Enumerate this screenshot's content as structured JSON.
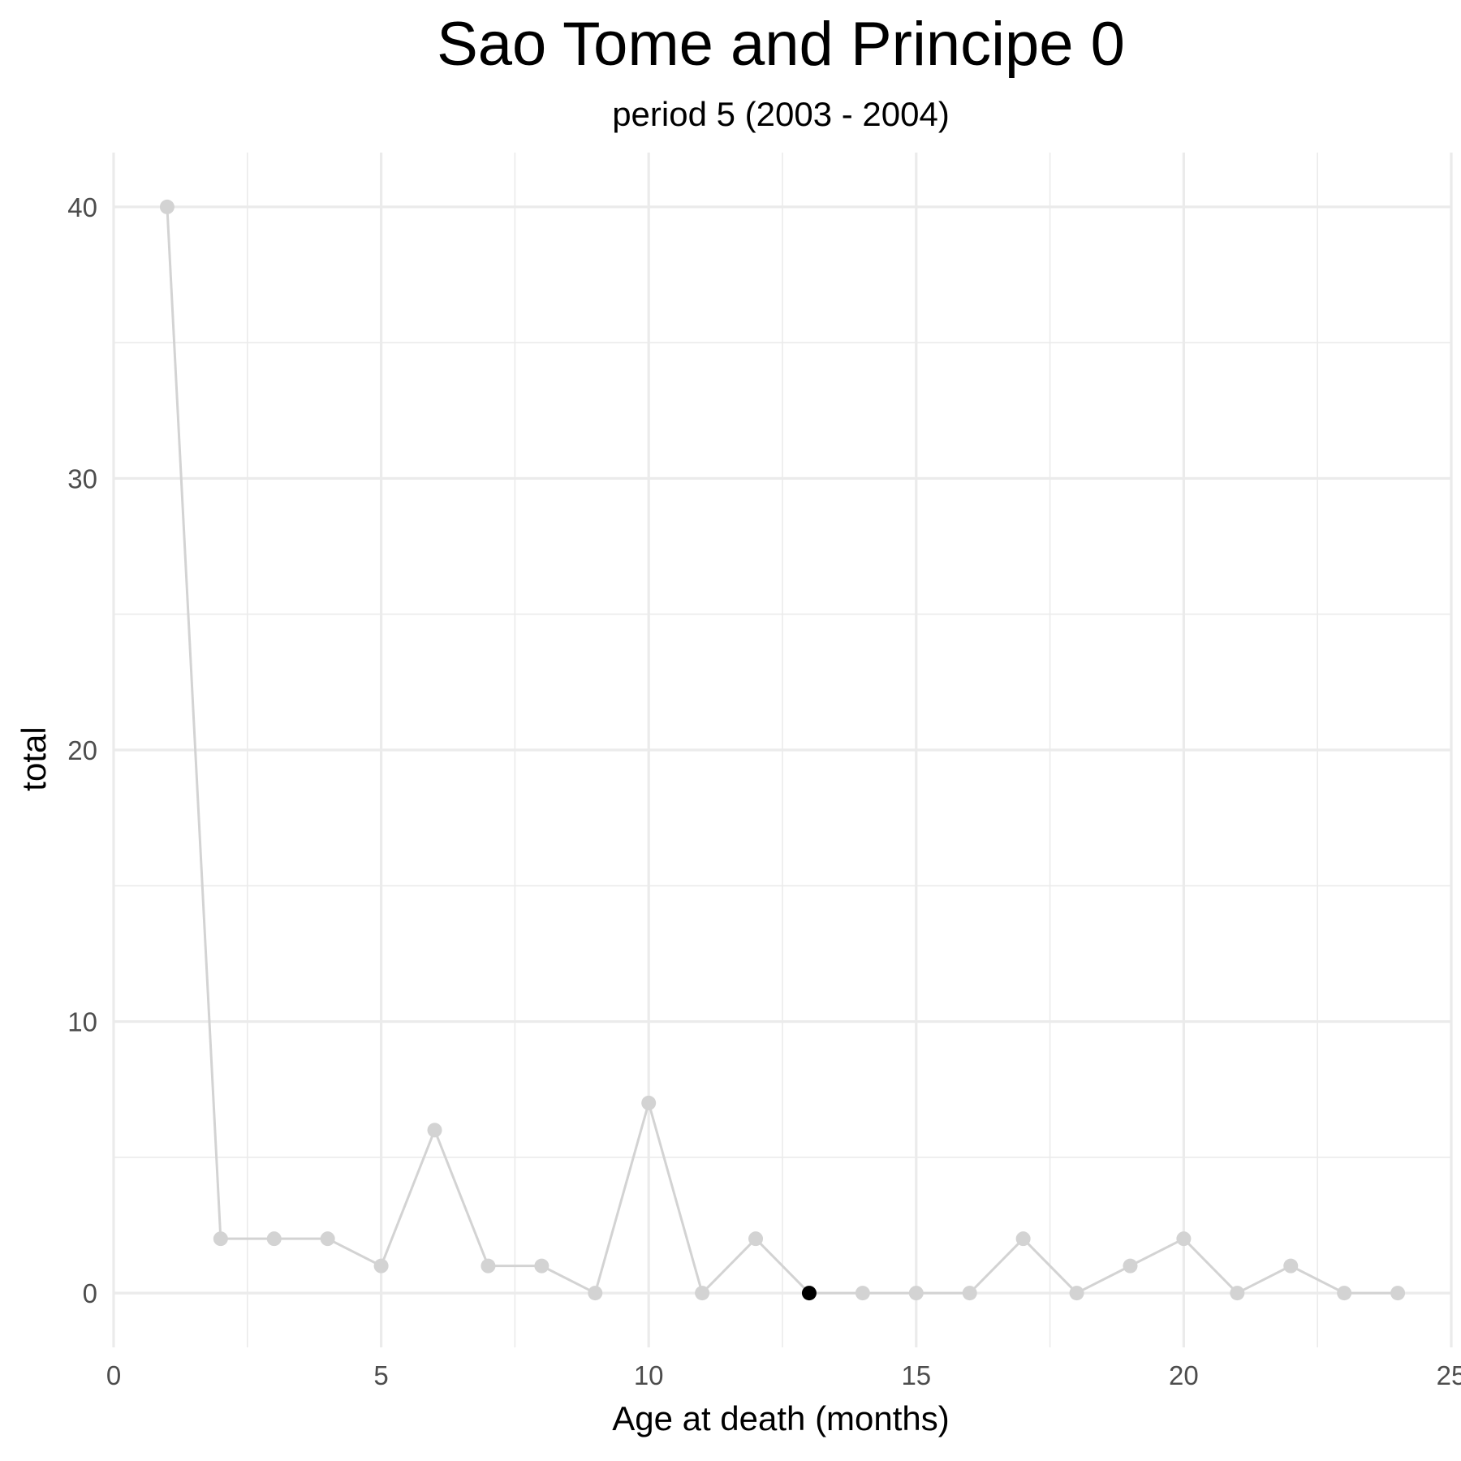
{
  "chart_data": {
    "type": "line",
    "title": "Sao Tome and Principe 0",
    "subtitle": "period 5 (2003 - 2004)",
    "xlabel": "Age at death (months)",
    "ylabel": "total",
    "xlim": [
      0,
      25
    ],
    "ylim": [
      -2,
      42
    ],
    "x_ticks": [
      0,
      5,
      10,
      15,
      20,
      25
    ],
    "y_ticks": [
      0,
      10,
      20,
      30,
      40
    ],
    "grid": true,
    "legend": "none",
    "series": [
      {
        "x": [
          1,
          2,
          3,
          4,
          5,
          6,
          7,
          8,
          9,
          10,
          11,
          12,
          13,
          14,
          15,
          16,
          17,
          18,
          19,
          20,
          21,
          22,
          23,
          24
        ],
        "y": [
          40,
          2,
          2,
          2,
          1,
          6,
          1,
          1,
          0,
          7,
          0,
          2,
          0,
          0,
          0,
          0,
          2,
          0,
          1,
          2,
          0,
          1,
          0,
          0
        ],
        "color": "#d3d3d3"
      }
    ],
    "highlight": {
      "x": 13,
      "y": 0,
      "color": "#000000"
    }
  }
}
